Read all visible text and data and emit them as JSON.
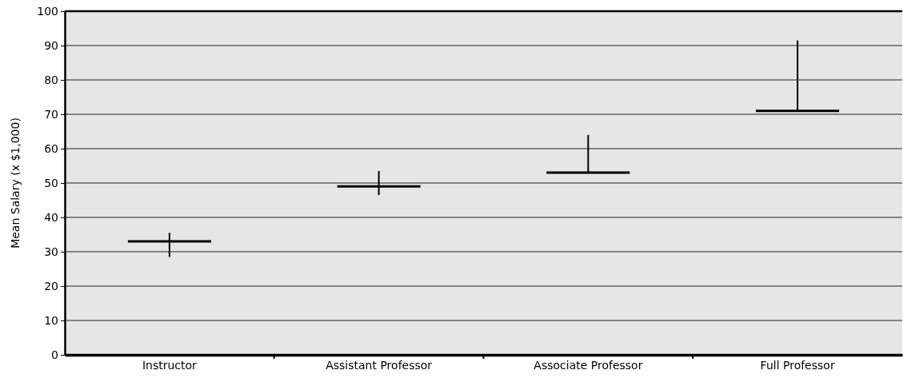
{
  "chart_data": {
    "type": "box",
    "ylabel": "Mean Salary (x $1,000)",
    "categories": [
      "Instructor",
      "Assistant Professor",
      "Associate Professor",
      "Full Professor"
    ],
    "boxes": [
      {
        "low": 28.5,
        "q1": 33,
        "median": 33,
        "q3": 33,
        "high": 35.5
      },
      {
        "low": 46.5,
        "q1": 49,
        "median": 49,
        "q3": 49,
        "high": 53.5
      },
      {
        "low": 53,
        "q1": 53,
        "median": 53,
        "q3": 53,
        "high": 64
      },
      {
        "low": 71,
        "q1": 71,
        "median": 71,
        "q3": 71,
        "high": 91.5
      }
    ],
    "color": "#000000",
    "ylim": [
      0,
      100
    ],
    "yticks": [
      0,
      10,
      20,
      30,
      40,
      50,
      60,
      70,
      80,
      90,
      100
    ],
    "grid": "y"
  }
}
